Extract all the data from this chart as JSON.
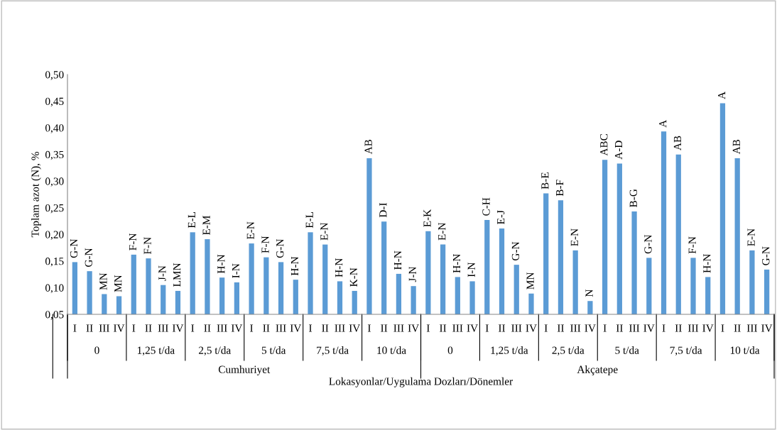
{
  "chart_data": {
    "type": "bar",
    "xlabel": "Lokasyonlar/Uygulama Dozları/Dönemler",
    "ylabel": "Toplam azot (N), %",
    "categories": [
      "I",
      "II",
      "III",
      "IV",
      "I",
      "II",
      "III",
      "IV",
      "I",
      "II",
      "III",
      "IV",
      "I",
      "II",
      "III",
      "IV",
      "I",
      "II",
      "III",
      "IV",
      "I",
      "II",
      "III",
      "IV",
      "I",
      "II",
      "III",
      "IV",
      "I",
      "II",
      "III",
      "IV",
      "I",
      "II",
      "III",
      "IV",
      "I",
      "II",
      "III",
      "IV",
      "I",
      "II",
      "III",
      "IV",
      "I",
      "II",
      "III",
      "IV"
    ],
    "values": [
      0.148,
      0.131,
      0.088,
      0.084,
      0.162,
      0.155,
      0.105,
      0.094,
      0.204,
      0.191,
      0.119,
      0.11,
      0.183,
      0.157,
      0.148,
      0.115,
      0.204,
      0.181,
      0.112,
      0.094,
      0.343,
      0.224,
      0.126,
      0.103,
      0.206,
      0.181,
      0.12,
      0.112,
      0.227,
      0.211,
      0.143,
      0.089,
      0.277,
      0.264,
      0.17,
      0.075,
      0.34,
      0.333,
      0.243,
      0.156,
      0.393,
      0.35,
      0.156,
      0.12,
      0.446,
      0.343,
      0.17,
      0.134
    ],
    "value_labels": [
      "G-N",
      "G-N",
      "MN",
      "MN",
      "F-N",
      "F-N",
      "J-N",
      "LMN",
      "E-L",
      "E-M",
      "H-N",
      "I-N",
      "E-N",
      "F-N",
      "G-N",
      "H-N",
      "E-L",
      "E-N",
      "H-N",
      "K-N",
      "AB",
      "D-I",
      "H-N",
      "J-N",
      "E-K",
      "E-N",
      "H-N",
      "I-N",
      "C-H",
      "E-J",
      "G-N",
      "MN",
      "B-E",
      "B-F",
      "E-N",
      "N",
      "ABC",
      "A-D",
      "B-G",
      "G-N",
      "A",
      "AB",
      "F-N",
      "H-N",
      "A",
      "AB",
      "E-N",
      "G-N"
    ],
    "color": "#5b9bd5",
    "ylim": [
      0.05,
      0.5
    ],
    "yticks": [
      {
        "value": 0.05,
        "label": "0,05"
      },
      {
        "value": 0.1,
        "label": "0,10"
      },
      {
        "value": 0.15,
        "label": "0,15"
      },
      {
        "value": 0.2,
        "label": "0,20"
      },
      {
        "value": 0.25,
        "label": "0,25"
      },
      {
        "value": 0.3,
        "label": "0,30"
      },
      {
        "value": 0.35,
        "label": "0,35"
      },
      {
        "value": 0.4,
        "label": "0,40"
      },
      {
        "value": 0.45,
        "label": "0,45"
      },
      {
        "value": 0.5,
        "label": "0,50"
      }
    ],
    "annotations": [
      "0",
      "1,25 t/da",
      "2,5 t/da",
      "5 t/da",
      "7,5 t/da",
      "10 t/da",
      "0",
      "1,25 t/da",
      "2,5 t/da",
      "5 t/da",
      "7,5 t/da",
      "10 t/da",
      "Cumhuriyet",
      "Akçatepe"
    ],
    "grid": false,
    "legend": false
  }
}
